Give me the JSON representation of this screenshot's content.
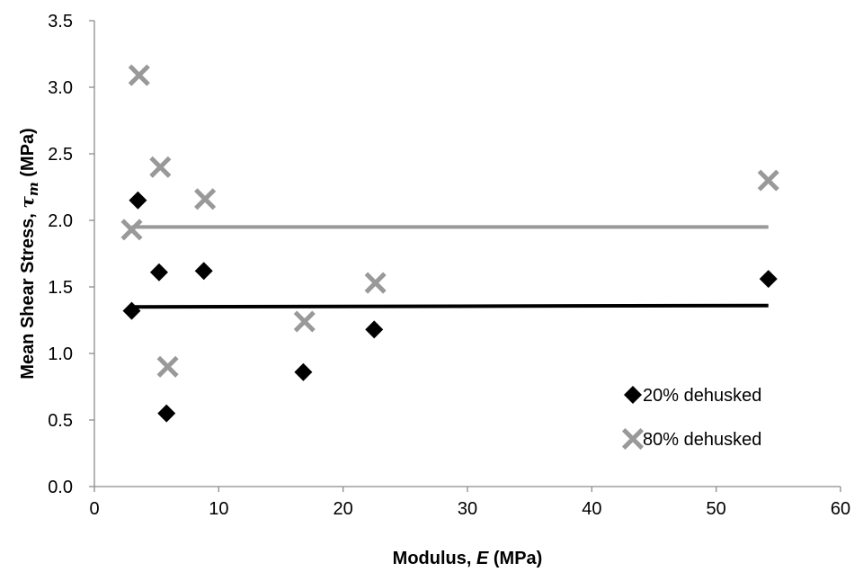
{
  "chart_data": {
    "type": "scatter",
    "xlabel": {
      "text": "Modulus, ",
      "symbol": "E",
      "unit": " (MPa)"
    },
    "ylabel": {
      "text": "Mean Shear Stress, ",
      "symbol": "τ",
      "subscript": "m",
      "unit": " (MPa)"
    },
    "xlim": [
      0,
      60
    ],
    "ylim": [
      0,
      3.5
    ],
    "x_ticks": [
      0,
      10,
      20,
      30,
      40,
      50,
      60
    ],
    "y_ticks": [
      0,
      0.5,
      1.0,
      1.5,
      2.0,
      2.5,
      3.0,
      3.5
    ],
    "x_tick_labels": [
      "0",
      "10",
      "20",
      "30",
      "40",
      "50",
      "60"
    ],
    "y_tick_labels": [
      "0.0",
      "0.5",
      "1.0",
      "1.5",
      "2.0",
      "2.5",
      "3.0",
      "3.5"
    ],
    "grid": false,
    "legend_position": "lower-right",
    "series": [
      {
        "name": "20% dehusked",
        "marker": "diamond",
        "color": "#000000",
        "points": [
          {
            "x": 3.0,
            "y": 1.32
          },
          {
            "x": 3.5,
            "y": 2.15
          },
          {
            "x": 5.2,
            "y": 1.61
          },
          {
            "x": 5.8,
            "y": 0.55
          },
          {
            "x": 8.8,
            "y": 1.62
          },
          {
            "x": 16.8,
            "y": 0.86
          },
          {
            "x": 22.5,
            "y": 1.18
          },
          {
            "x": 54.2,
            "y": 1.56
          }
        ]
      },
      {
        "name": "80% dehusked",
        "marker": "x",
        "color": "#999999",
        "points": [
          {
            "x": 3.0,
            "y": 1.93
          },
          {
            "x": 3.6,
            "y": 3.09
          },
          {
            "x": 5.3,
            "y": 2.4
          },
          {
            "x": 5.9,
            "y": 0.9
          },
          {
            "x": 8.9,
            "y": 2.16
          },
          {
            "x": 16.9,
            "y": 1.24
          },
          {
            "x": 22.6,
            "y": 1.53
          },
          {
            "x": 54.2,
            "y": 2.3
          }
        ]
      }
    ],
    "trendlines": [
      {
        "series": "20% dehusked",
        "color": "#000000",
        "x": [
          3.0,
          54.2
        ],
        "y": [
          1.35,
          1.36
        ]
      },
      {
        "series": "80% dehusked",
        "color": "#999999",
        "x": [
          3.0,
          54.2
        ],
        "y": [
          1.95,
          1.95
        ]
      }
    ]
  }
}
